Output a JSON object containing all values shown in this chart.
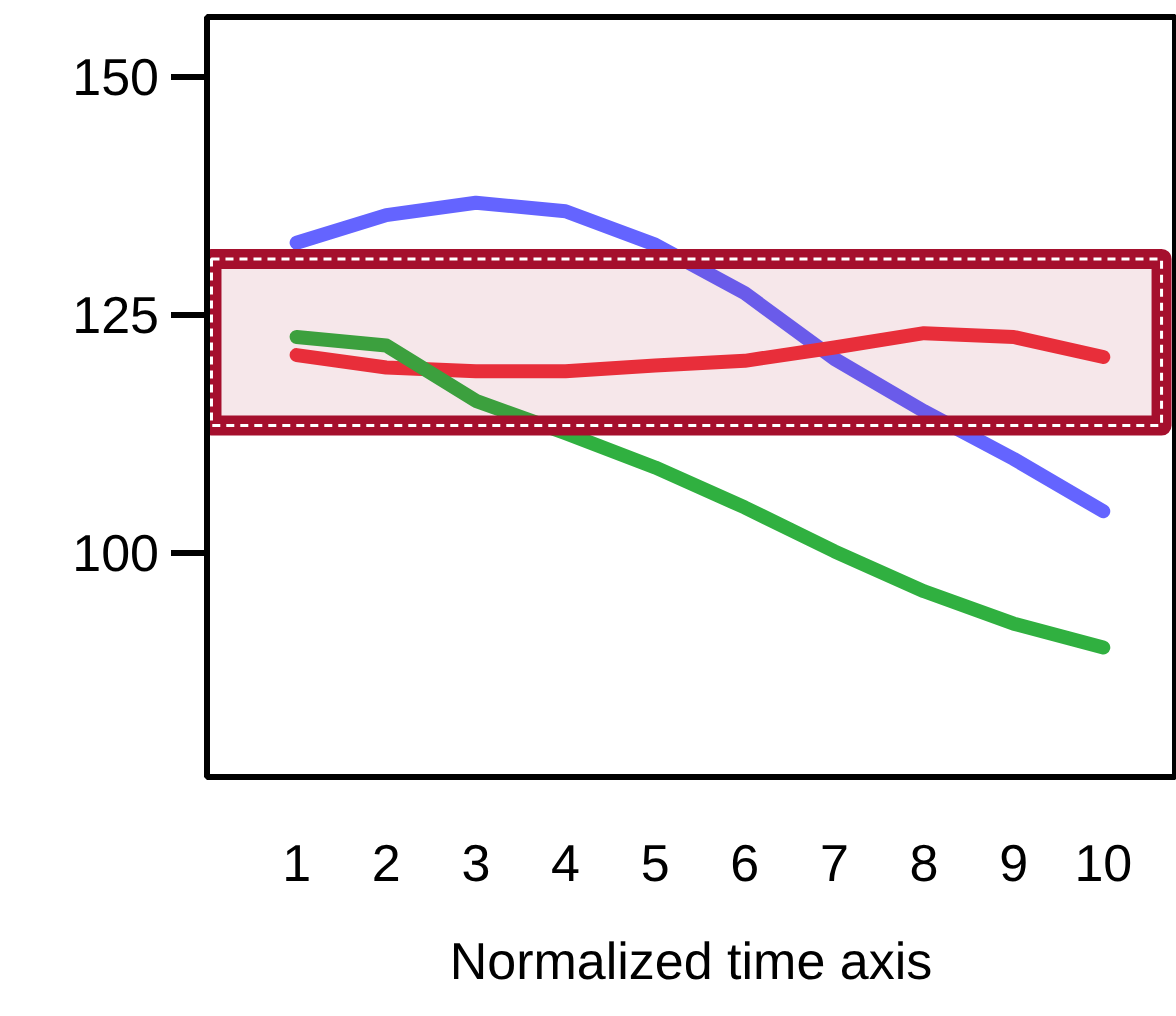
{
  "chart_data": {
    "type": "line",
    "xlabel": "Normalized time axis",
    "x": [
      1,
      2,
      3,
      4,
      5,
      6,
      7,
      8,
      9,
      10
    ],
    "xlim": [
      0,
      10.8
    ],
    "xticks": [
      1,
      2,
      3,
      4,
      5,
      6,
      7,
      8,
      9,
      10
    ],
    "ylim": [
      76.5,
      156.3
    ],
    "yticks": [
      100,
      125,
      150
    ],
    "series": [
      {
        "color": "#6464ff",
        "values": [
          132.6,
          135.5,
          136.8,
          135.9,
          132.4,
          127.3,
          120.4,
          114.9,
          109.9,
          104.4
        ]
      },
      {
        "color": "#f0323c",
        "values": [
          120.8,
          119.5,
          119.1,
          119.1,
          119.7,
          120.2,
          121.6,
          123.1,
          122.7,
          120.6
        ]
      },
      {
        "color": "#30b040",
        "values": [
          122.7,
          121.8,
          116,
          112.6,
          109,
          104.8,
          100.2,
          96,
          92.6,
          90.1
        ]
      }
    ],
    "bands": [
      {
        "axis": "y",
        "from": 113.4,
        "to": 130.9,
        "color": "#a50f2d"
      }
    ],
    "grid": false,
    "marker": "none",
    "line_style": "solid"
  }
}
